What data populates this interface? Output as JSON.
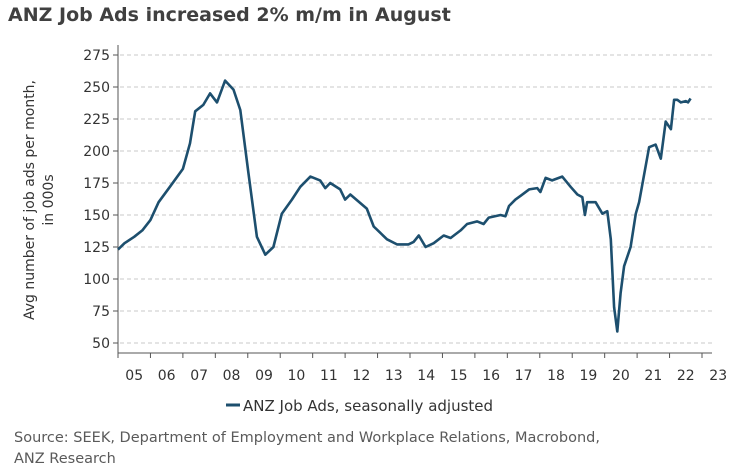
{
  "title": "ANZ Job Ads increased 2% m/m in August",
  "source": [
    "Source: SEEK, Department of Employment and Workplace Relations, Macrobond,",
    "ANZ Research"
  ],
  "chart_data": {
    "type": "line",
    "title": "ANZ Job Ads increased 2% m/m in August",
    "ylabel": [
      "Avg number of job ads per month,",
      "in 000s"
    ],
    "xlabel": "",
    "ylim": [
      50,
      275
    ],
    "yticks": [
      50,
      75,
      100,
      125,
      150,
      175,
      200,
      225,
      250,
      275
    ],
    "xlim": [
      2005,
      2023
    ],
    "xtick_labels": [
      "05",
      "06",
      "07",
      "08",
      "09",
      "10",
      "11",
      "12",
      "13",
      "14",
      "15",
      "16",
      "17",
      "18",
      "19",
      "20",
      "21",
      "22",
      "23"
    ],
    "grid": true,
    "legend_position": "bottom",
    "line_color": "#1d4f6e",
    "series": [
      {
        "name": "ANZ Job Ads, seasonally adjusted",
        "x": [
          2005.0,
          2005.2,
          2005.5,
          2005.75,
          2006.0,
          2006.25,
          2006.6,
          2007.0,
          2007.22,
          2007.38,
          2007.63,
          2007.84,
          2008.05,
          2008.3,
          2008.56,
          2008.77,
          2009.02,
          2009.28,
          2009.54,
          2009.79,
          2010.05,
          2010.36,
          2010.62,
          2010.93,
          2011.23,
          2011.39,
          2011.54,
          2011.85,
          2012.0,
          2012.16,
          2012.67,
          2012.88,
          2013.29,
          2013.6,
          2013.95,
          2014.11,
          2014.27,
          2014.48,
          2014.73,
          2015.04,
          2015.25,
          2015.56,
          2015.76,
          2016.07,
          2016.27,
          2016.43,
          2016.79,
          2016.94,
          2017.05,
          2017.25,
          2017.41,
          2017.67,
          2017.92,
          2018.02,
          2018.18,
          2018.38,
          2018.69,
          2018.95,
          2019.16,
          2019.31,
          2019.39,
          2019.46,
          2019.72,
          2019.93,
          2020.08,
          2020.19,
          2020.29,
          2020.39,
          2020.49,
          2020.6,
          2020.8,
          2020.96,
          2021.06,
          2021.37,
          2021.57,
          2021.73,
          2021.88,
          2022.04,
          2022.14,
          2022.24,
          2022.35,
          2022.5,
          2022.57,
          2022.65
        ],
        "values": [
          123,
          128,
          133,
          138,
          146,
          160,
          172,
          186,
          206,
          231,
          236,
          245,
          238,
          255,
          248,
          232,
          183,
          133,
          119,
          125,
          151,
          162,
          172,
          180,
          177,
          171,
          175,
          170,
          162,
          166,
          155,
          141,
          131,
          127,
          127,
          129,
          134,
          125,
          128,
          134,
          132,
          138,
          143,
          145,
          143,
          148,
          150,
          149,
          157,
          162,
          165,
          170,
          171,
          168,
          179,
          177,
          180,
          172,
          166,
          164,
          150,
          160,
          160,
          151,
          153,
          131,
          78,
          59,
          89,
          110,
          125,
          151,
          160,
          203,
          205,
          194,
          223,
          217,
          240,
          240,
          238,
          239,
          238,
          241
        ]
      }
    ]
  }
}
